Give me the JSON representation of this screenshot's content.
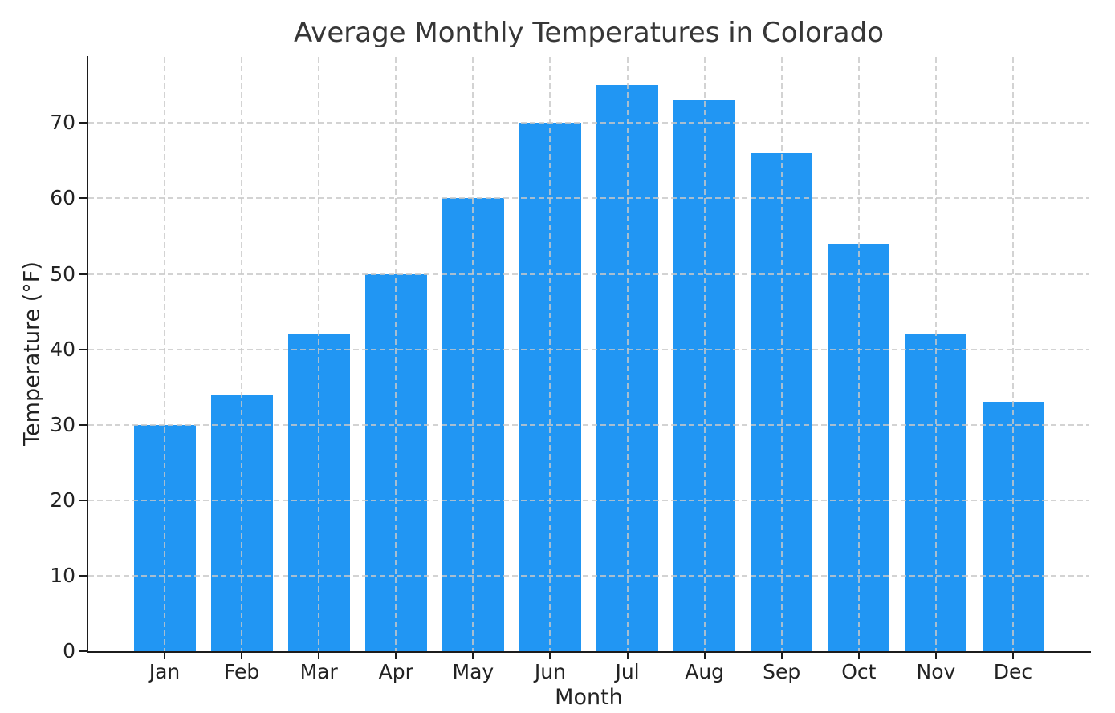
{
  "chart_data": {
    "type": "bar",
    "title": "Average Monthly Temperatures in Colorado",
    "xlabel": "Month",
    "ylabel": "Temperature (°F)",
    "categories": [
      "Jan",
      "Feb",
      "Mar",
      "Apr",
      "May",
      "Jun",
      "Jul",
      "Aug",
      "Sep",
      "Oct",
      "Nov",
      "Dec"
    ],
    "values": [
      30,
      34,
      42,
      50,
      60,
      70,
      75,
      73,
      66,
      54,
      42,
      33
    ],
    "yticks": [
      0,
      10,
      20,
      30,
      40,
      50,
      60,
      70
    ],
    "ylim": [
      0,
      78.75
    ],
    "bar_width_fraction": 0.8,
    "grid": "dashed, both axes, drawn over bars",
    "legend_position": "none",
    "colors": {
      "bar": "#2196F3",
      "grid": "#c8c8c8",
      "axis": "#1c1c1c",
      "title": "#363636",
      "background": "#ffffff"
    }
  }
}
